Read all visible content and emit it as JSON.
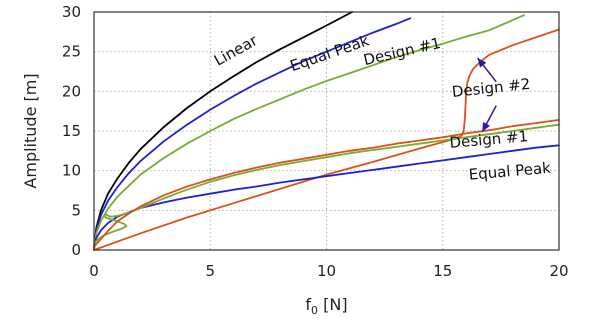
{
  "chart_data": {
    "type": "line",
    "xlabel": "f",
    "xlabel_sub": "0",
    "xlabel_unit": " [N]",
    "ylabel": "Amplitude [m]",
    "xlim": [
      0,
      20
    ],
    "ylim": [
      0,
      30
    ],
    "x_ticks": [
      0,
      5,
      10,
      15,
      20
    ],
    "y_ticks": [
      0,
      5,
      10,
      15,
      20,
      25,
      30
    ],
    "grid": true,
    "colors": {
      "black": "#000000",
      "blue": "#1f1fd6",
      "green": "#77ac30",
      "orange": "#d95319",
      "arrow": "#2a1aa0"
    },
    "series": [
      {
        "color": "black",
        "x": [
          0,
          0.1,
          0.3,
          0.6,
          1,
          1.5,
          2,
          3,
          4,
          5,
          6,
          7,
          8,
          9,
          10,
          11.1
        ],
        "y": [
          0,
          2.8,
          5.0,
          7.1,
          9.0,
          11.0,
          12.7,
          15.5,
          17.9,
          20.0,
          21.9,
          23.7,
          25.3,
          26.8,
          28.3,
          30
        ]
      },
      {
        "color": "blue",
        "x": [
          0,
          0.1,
          0.3,
          0.6,
          1,
          1.5,
          2,
          3,
          4,
          5,
          6,
          7,
          8,
          9,
          10,
          11,
          12,
          13,
          13.6
        ],
        "y": [
          0,
          2.5,
          4.4,
          6.2,
          7.9,
          9.7,
          11.2,
          13.7,
          15.8,
          17.7,
          19.4,
          21.0,
          22.4,
          23.8,
          25.0,
          26.2,
          27.4,
          28.5,
          29.2
        ]
      },
      {
        "color": "green",
        "x": [
          0,
          0.1,
          0.3,
          0.6,
          1,
          2,
          3,
          4,
          5,
          6,
          7,
          8,
          9,
          10,
          11,
          12,
          13,
          14,
          15,
          16,
          17,
          18.5
        ],
        "y": [
          0,
          2.1,
          3.7,
          5.2,
          6.7,
          9.5,
          11.6,
          13.4,
          15.0,
          16.5,
          17.8,
          19.0,
          20.2,
          21.3,
          22.3,
          23.3,
          24.3,
          25.2,
          26.0,
          26.9,
          27.7,
          29.6
        ]
      },
      {
        "color": "orange",
        "x": [
          0,
          2,
          4,
          6,
          8,
          10,
          12,
          14,
          15,
          15.5,
          15.8,
          15.9,
          15.95,
          16.0,
          16.05,
          16.15,
          16.3,
          16.6,
          17,
          18,
          19,
          20
        ],
        "y": [
          0,
          2.1,
          4.1,
          5.9,
          7.7,
          9.5,
          11.1,
          12.8,
          13.6,
          14.0,
          14.4,
          15.0,
          16.5,
          19.5,
          21.0,
          22.0,
          22.8,
          23.7,
          24.6,
          25.8,
          26.8,
          27.8
        ]
      },
      {
        "color": "blue",
        "x": [
          0,
          0.1,
          0.3,
          0.6,
          1,
          2,
          3,
          4,
          5,
          6,
          7,
          8,
          9,
          10,
          11,
          12,
          13,
          14,
          15,
          16,
          17,
          18,
          19,
          20
        ],
        "y": [
          0.5,
          1.5,
          2.5,
          3.4,
          4.2,
          5.3,
          6.0,
          6.6,
          7.1,
          7.6,
          8.0,
          8.5,
          8.9,
          9.3,
          9.7,
          10.1,
          10.5,
          10.9,
          11.3,
          11.7,
          12.1,
          12.5,
          12.9,
          13.2
        ]
      },
      {
        "color": "green",
        "x": [
          0,
          0.15,
          0.4,
          0.8,
          1.2,
          1.4,
          1.3,
          1.0,
          0.7,
          0.5,
          0.45,
          0.5,
          0.7,
          1,
          1.5,
          2,
          3,
          4,
          5,
          6,
          7,
          8,
          9,
          10,
          11,
          12,
          13,
          14,
          15,
          16,
          17,
          18,
          19,
          20
        ],
        "y": [
          0.8,
          1.3,
          1.8,
          2.3,
          2.7,
          3.0,
          3.3,
          3.6,
          3.9,
          4.1,
          4.3,
          4.5,
          4.2,
          4.3,
          4.7,
          5.3,
          6.5,
          7.6,
          8.6,
          9.4,
          10.1,
          10.7,
          11.2,
          11.7,
          12.2,
          12.6,
          13.0,
          13.4,
          13.8,
          14.2,
          14.6,
          15.0,
          15.4,
          15.8
        ]
      },
      {
        "color": "orange",
        "x": [
          0,
          0.3,
          0.6,
          1,
          1.5,
          2,
          3,
          4,
          5,
          6,
          7,
          8,
          9,
          10,
          11,
          12,
          13,
          14,
          15,
          16,
          17,
          18,
          19,
          20
        ],
        "y": [
          0.4,
          1.4,
          2.4,
          3.6,
          4.6,
          5.5,
          6.9,
          8.0,
          8.9,
          9.7,
          10.4,
          11.0,
          11.5,
          12.0,
          12.5,
          12.9,
          13.4,
          13.8,
          14.2,
          14.7,
          15.1,
          15.6,
          16.0,
          16.4
        ]
      }
    ],
    "annotations": [
      {
        "text": "Linear",
        "x": 6.2,
        "y": 24.6,
        "rotate": -29
      },
      {
        "text": "Equal Peak",
        "x": 10.2,
        "y": 24.2,
        "rotate": -19
      },
      {
        "text": "Design #1",
        "x": 13.3,
        "y": 24.4,
        "rotate": -13
      },
      {
        "text": "Design #2",
        "x": 17.1,
        "y": 19.8,
        "rotate": -6
      },
      {
        "text": "Design #1",
        "x": 17.0,
        "y": 13.3,
        "rotate": -5
      },
      {
        "text": "Equal Peak",
        "x": 17.9,
        "y": 9.3,
        "rotate": -5
      }
    ],
    "arrows": [
      {
        "from": [
          17.3,
          21.2
        ],
        "to": [
          16.5,
          24.2
        ]
      },
      {
        "from": [
          17.3,
          18.2
        ],
        "to": [
          16.7,
          14.9
        ]
      }
    ]
  }
}
